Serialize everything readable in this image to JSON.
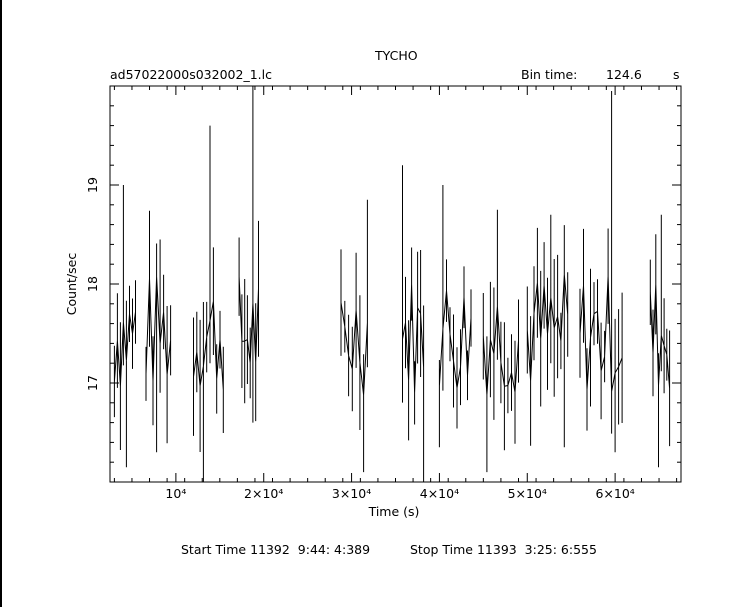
{
  "chart_data": {
    "type": "line",
    "title": "TYCHO",
    "file_label": "ad57022000s032002_1.lc",
    "bin_time_label": "Bin time:",
    "bin_time_value": "124.6",
    "bin_time_unit": "s",
    "xlabel": "Time (s)",
    "ylabel": "Count/sec",
    "xlim": [
      2500,
      67500
    ],
    "ylim": [
      16.0,
      20.0
    ],
    "x_ticks": [
      {
        "value": 10000,
        "label": "10⁴"
      },
      {
        "value": 20000,
        "label": "2×10⁴"
      },
      {
        "value": 30000,
        "label": "3×10⁴"
      },
      {
        "value": 40000,
        "label": "4×10⁴"
      },
      {
        "value": 50000,
        "label": "5×10⁴"
      },
      {
        "value": 60000,
        "label": "6×10⁴"
      }
    ],
    "y_ticks": [
      {
        "value": 17,
        "label": "17"
      },
      {
        "value": 18,
        "label": "18"
      },
      {
        "value": 19,
        "label": "19"
      }
    ],
    "series": [
      {
        "segments": [
          {
            "x_start": 3000,
            "x_end": 5400,
            "peak": 19.0,
            "low": 16.15
          },
          {
            "x_start": 6600,
            "x_end": 9400,
            "peak": 18.45,
            "low": 16.3
          },
          {
            "x_start": 12000,
            "x_end": 15400,
            "peak": 19.6,
            "low": 16.0
          },
          {
            "x_start": 17200,
            "x_end": 19400,
            "peak": 20.0,
            "low": 16.6
          },
          {
            "x_start": 28800,
            "x_end": 31800,
            "peak": 18.85,
            "low": 16.1
          },
          {
            "x_start": 35800,
            "x_end": 38200,
            "peak": 19.2,
            "low": 16.0
          },
          {
            "x_start": 40000,
            "x_end": 43600,
            "peak": 19.0,
            "low": 16.35
          },
          {
            "x_start": 45000,
            "x_end": 49000,
            "peak": 18.75,
            "low": 16.1
          },
          {
            "x_start": 50000,
            "x_end": 54600,
            "peak": 18.7,
            "low": 16.35
          },
          {
            "x_start": 56000,
            "x_end": 60800,
            "peak": 19.95,
            "low": 16.3
          },
          {
            "x_start": 64000,
            "x_end": 66200,
            "peak": 18.7,
            "low": 16.15
          }
        ],
        "typical_range": [
          16.8,
          18.2
        ],
        "mean": 17.5
      }
    ]
  },
  "footer": {
    "start_time": "Start Time 11392  9:44: 4:389",
    "stop_time": "Stop Time 11393  3:25: 6:555"
  }
}
